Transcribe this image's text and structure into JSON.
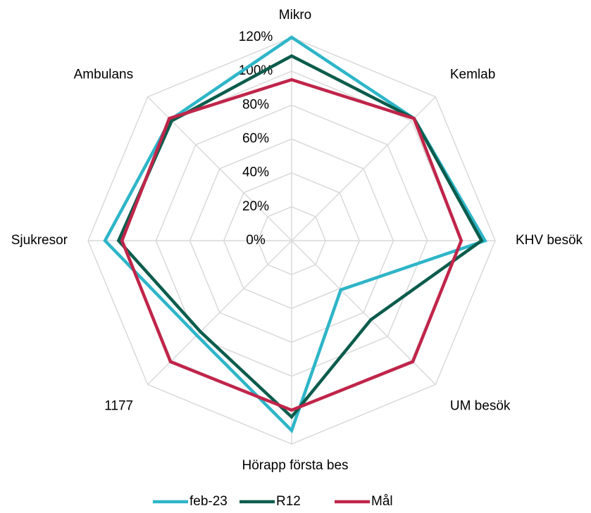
{
  "chart_data": {
    "type": "radar",
    "categories": [
      "Mikro",
      "Kemlab",
      "KHV besök",
      "UM besök",
      "Hörapp första bes",
      "1177",
      "Sjukresor",
      "Ambulans"
    ],
    "series": [
      {
        "name": "feb-23",
        "color": "#2eb5c8",
        "values": [
          120,
          102,
          114,
          41,
          112,
          79,
          110,
          101
        ]
      },
      {
        "name": "R12",
        "color": "#0b5c4c",
        "values": [
          109,
          102,
          112,
          66,
          104,
          76,
          102,
          100
        ]
      },
      {
        "name": "Mål",
        "color": "#c0254a",
        "values": [
          95,
          102,
          100,
          101,
          100,
          101,
          100,
          102
        ]
      }
    ],
    "ylim": [
      0,
      120
    ],
    "yticks": [
      {
        "value": 0,
        "label": "0%"
      },
      {
        "value": 20,
        "label": "20%"
      },
      {
        "value": 40,
        "label": "40%"
      },
      {
        "value": 60,
        "label": "60%"
      },
      {
        "value": 80,
        "label": "80%"
      },
      {
        "value": 100,
        "label": "100%"
      },
      {
        "value": 120,
        "label": "120%"
      }
    ],
    "grid": true,
    "legend": "bottom"
  }
}
